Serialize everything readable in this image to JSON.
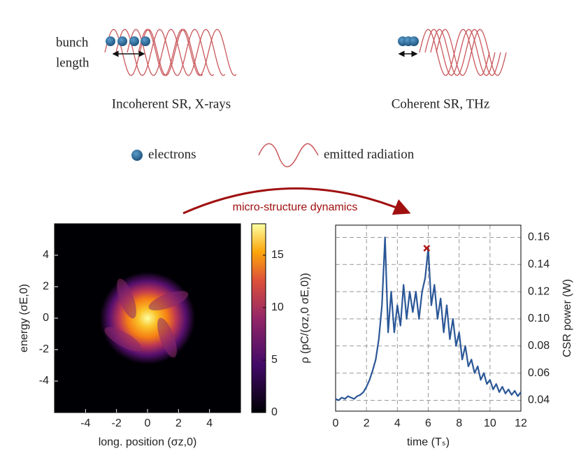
{
  "diagram": {
    "bunch_label": "bunch",
    "length_label": "length",
    "incoherent": "Incoherent SR, X-rays",
    "coherent": "Coherent SR, THz",
    "legend_electrons": "electrons",
    "legend_radiation": "emitted radiation",
    "arrow_label": "micro-structure dynamics"
  },
  "chart_data": [
    {
      "type": "heatmap",
      "xlabel": "long. position (σz,0)",
      "ylabel": "energy (σE,0)",
      "colorbar_label": "ρ (pC/(σz,0 σE,0))",
      "xlim": [
        -6,
        6
      ],
      "ylim": [
        -6,
        6
      ],
      "xticks": [
        -4,
        -2,
        0,
        2,
        4
      ],
      "yticks": [
        -4,
        -2,
        0,
        2,
        4
      ],
      "zlim": [
        0,
        18
      ],
      "zticks": [
        0,
        5,
        10,
        15
      ]
    },
    {
      "type": "line",
      "xlabel": "time (Tₛ)",
      "ylabel": "CSR power (W)",
      "grid": true,
      "xlim": [
        0,
        12
      ],
      "ylim": [
        0.032,
        0.169
      ],
      "xticks": [
        0,
        2,
        4,
        6,
        8,
        10,
        12
      ],
      "yticks": [
        0.04,
        0.06,
        0.08,
        {
          "value": 0.1,
          "label": "0.10"
        },
        0.12,
        0.14,
        0.16
      ],
      "x": [
        0,
        0.2,
        0.4,
        0.6,
        0.8,
        1,
        1.2,
        1.4,
        1.6,
        1.8,
        2,
        2.2,
        2.4,
        2.6,
        2.8,
        3,
        3.2,
        3.4,
        3.6,
        3.8,
        4,
        4.2,
        4.4,
        4.6,
        4.8,
        5,
        5.2,
        5.4,
        5.6,
        5.8,
        6,
        6.2,
        6.4,
        6.6,
        6.8,
        7,
        7.2,
        7.4,
        7.6,
        7.8,
        8,
        8.2,
        8.4,
        8.6,
        8.8,
        9,
        9.2,
        9.4,
        9.6,
        9.8,
        10,
        10.2,
        10.4,
        10.6,
        10.8,
        11,
        11.2,
        11.4,
        11.6,
        11.8,
        12
      ],
      "series": [
        {
          "color": "#2b5797",
          "values": [
            0.041,
            0.04,
            0.042,
            0.041,
            0.043,
            0.042,
            0.041,
            0.043,
            0.044,
            0.046,
            0.05,
            0.055,
            0.062,
            0.07,
            0.085,
            0.11,
            0.16,
            0.09,
            0.12,
            0.09,
            0.11,
            0.095,
            0.125,
            0.1,
            0.12,
            0.105,
            0.12,
            0.1,
            0.12,
            0.13,
            0.152,
            0.11,
            0.125,
            0.1,
            0.115,
            0.09,
            0.11,
            0.085,
            0.1,
            0.08,
            0.09,
            0.07,
            0.08,
            0.065,
            0.07,
            0.06,
            0.065,
            0.055,
            0.06,
            0.052,
            0.055,
            0.048,
            0.052,
            0.046,
            0.05,
            0.045,
            0.048,
            0.044,
            0.047,
            0.043,
            0.046
          ]
        },
        {
          "color": "#b01515",
          "marker": "x",
          "x": [
            5.9
          ],
          "values": [
            0.152
          ]
        }
      ]
    }
  ]
}
